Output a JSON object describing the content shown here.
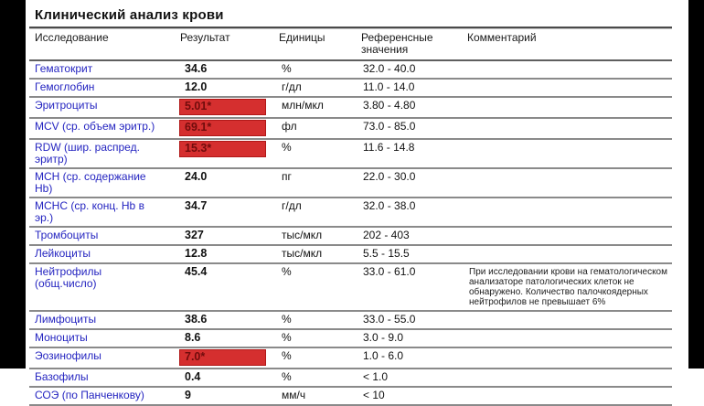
{
  "report": {
    "title": "Клинический анализ крови",
    "columns": [
      "Исследование",
      "Результат",
      "Единицы",
      "Референсные значения",
      "Комментарий"
    ],
    "rows": [
      {
        "test": "Гематокрит",
        "result": "34.6",
        "abnormal": false,
        "units": "%",
        "reference": "32.0 - 40.0",
        "comment": ""
      },
      {
        "test": "Гемоглобин",
        "result": "12.0",
        "abnormal": false,
        "units": "г/дл",
        "reference": "11.0 - 14.0",
        "comment": ""
      },
      {
        "test": "Эритроциты",
        "result": "5.01*",
        "abnormal": true,
        "units": "млн/мкл",
        "reference": "3.80 - 4.80",
        "comment": ""
      },
      {
        "test": "MCV (ср. объем эритр.)",
        "result": "69.1*",
        "abnormal": true,
        "units": "фл",
        "reference": "73.0 - 85.0",
        "comment": ""
      },
      {
        "test": "RDW (шир. распред.\nэритр)",
        "result": "15.3*",
        "abnormal": true,
        "units": "%",
        "reference": "11.6 - 14.8",
        "comment": ""
      },
      {
        "test": "MCH (ср. содержание\nHb)",
        "result": "24.0",
        "abnormal": false,
        "units": "пг",
        "reference": "22.0 - 30.0",
        "comment": ""
      },
      {
        "test": "MCHC (ср. конц. Hb в\nэр.)",
        "result": "34.7",
        "abnormal": false,
        "units": "г/дл",
        "reference": "32.0 - 38.0",
        "comment": ""
      },
      {
        "test": "Тромбоциты",
        "result": "327",
        "abnormal": false,
        "units": "тыс/мкл",
        "reference": "202 - 403",
        "comment": ""
      },
      {
        "test": "Лейкоциты",
        "result": "12.8",
        "abnormal": false,
        "units": "тыс/мкл",
        "reference": "5.5 - 15.5",
        "comment": ""
      },
      {
        "test": "Нейтрофилы\n(общ.число)",
        "result": "45.4",
        "abnormal": false,
        "units": "%",
        "reference": "33.0 - 61.0",
        "comment": "При исследовании крови на гематологическом\nанализаторе патологических клеток не\nобнаружено. Количество палочкоядерных\nнейтрофилов не превышает 6%"
      },
      {
        "test": "Лимфоциты",
        "result": "38.6",
        "abnormal": false,
        "units": "%",
        "reference": "33.0 - 55.0",
        "comment": ""
      },
      {
        "test": "Моноциты",
        "result": "8.6",
        "abnormal": false,
        "units": "%",
        "reference": "3.0 - 9.0",
        "comment": ""
      },
      {
        "test": "Эозинофилы",
        "result": "7.0*",
        "abnormal": true,
        "units": "%",
        "reference": "1.0 - 6.0",
        "comment": ""
      },
      {
        "test": "Базофилы",
        "result": "0.4",
        "abnormal": false,
        "units": "%",
        "reference": "< 1.0",
        "comment": ""
      },
      {
        "test": "СОЭ (по Панченкову)",
        "result": "9",
        "abnormal": false,
        "units": "мм/ч",
        "reference": "< 10",
        "comment": ""
      }
    ],
    "colors": {
      "test_link_blue": "#2424c0",
      "abnormal_bg": "#d52f2f",
      "abnormal_text": "#710c0c",
      "sidebar_black": "#000000"
    }
  }
}
